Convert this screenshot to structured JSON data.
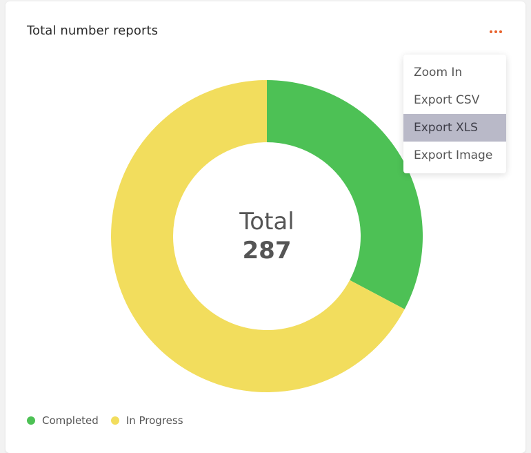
{
  "card": {
    "title": "Total number reports"
  },
  "menu": {
    "trigger_icon": "more-horizontal-icon",
    "trigger_color": "#e8622c",
    "items": [
      {
        "label": "Zoom In",
        "active": false
      },
      {
        "label": "Export CSV",
        "active": false
      },
      {
        "label": "Export XLS",
        "active": true
      },
      {
        "label": "Export Image",
        "active": false
      }
    ]
  },
  "chart_data": {
    "type": "pie",
    "variant": "donut",
    "center_label": "Total",
    "center_value": "287",
    "series": [
      {
        "name": "Completed",
        "value": 94,
        "color": "#4dc155"
      },
      {
        "name": "In Progress",
        "value": 193,
        "color": "#f2dd5d"
      }
    ],
    "legend_position": "bottom-left"
  }
}
